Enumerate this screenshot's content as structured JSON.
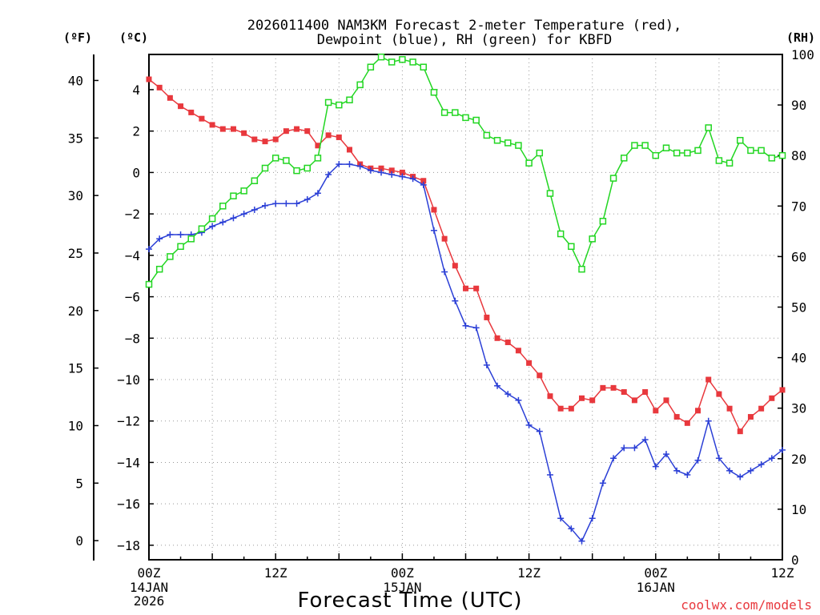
{
  "chart_data": {
    "type": "line",
    "title_line1": "2026011400 NAM3KM Forecast 2-meter Temperature (red),",
    "title_line2": "Dewpoint (blue), RH (green) for KBFD",
    "xlabel": "Forecast Time (UTC)",
    "credit": "coolwx.com/models",
    "unit_f": "(ºF)",
    "unit_c": "(ºC)",
    "unit_rh": "(RH)",
    "x_hours_range": [
      0,
      60
    ],
    "x_ticks": [
      {
        "h": 0,
        "label": "00Z",
        "sub1": "14JAN",
        "sub2": "2026"
      },
      {
        "h": 12,
        "label": "12Z",
        "sub1": "",
        "sub2": ""
      },
      {
        "h": 24,
        "label": "00Z",
        "sub1": "15JAN",
        "sub2": ""
      },
      {
        "h": 36,
        "label": "12Z",
        "sub1": "",
        "sub2": ""
      },
      {
        "h": 48,
        "label": "00Z",
        "sub1": "16JAN",
        "sub2": ""
      },
      {
        "h": 60,
        "label": "12Z",
        "sub1": "",
        "sub2": ""
      }
    ],
    "c_range": [
      -18.7,
      5.7
    ],
    "c_ticks": [
      "4",
      "2",
      "0",
      "−2",
      "−4",
      "−6",
      "−8",
      "−10",
      "−12",
      "−14",
      "−16",
      "−18"
    ],
    "c_tick_values": [
      4,
      2,
      0,
      -2,
      -4,
      -6,
      -8,
      -10,
      -12,
      -14,
      -16,
      -18
    ],
    "f_ticks": [
      "40",
      "35",
      "30",
      "25",
      "20",
      "15",
      "10",
      "5",
      "0"
    ],
    "f_tick_values": [
      40,
      35,
      30,
      25,
      20,
      15,
      10,
      5,
      0
    ],
    "rh_range": [
      0,
      100
    ],
    "rh_ticks": [
      "100",
      "90",
      "80",
      "70",
      "60",
      "50",
      "40",
      "30",
      "20",
      "10",
      "0"
    ],
    "rh_tick_values": [
      100,
      90,
      80,
      70,
      60,
      50,
      40,
      30,
      20,
      10,
      0
    ],
    "series": [
      {
        "name": "2-meter Temperature",
        "color": "#e8383d",
        "marker": "filled-square",
        "axis": "C",
        "hours": [
          0,
          1,
          2,
          3,
          4,
          5,
          6,
          7,
          8,
          9,
          10,
          11,
          12,
          13,
          14,
          15,
          16,
          17,
          18,
          19,
          20,
          21,
          22,
          23,
          24,
          25,
          26,
          27,
          28,
          29,
          30,
          31,
          32,
          33,
          34,
          35,
          36,
          37,
          38,
          39,
          40,
          41,
          42,
          43,
          44,
          45,
          46,
          47,
          48,
          49,
          50,
          51,
          52,
          53,
          54,
          55,
          56,
          57,
          58,
          59,
          60
        ],
        "values": [
          4.5,
          4.1,
          3.6,
          3.2,
          2.9,
          2.6,
          2.3,
          2.1,
          2.1,
          1.9,
          1.6,
          1.5,
          1.6,
          2.0,
          2.1,
          2.0,
          1.3,
          1.8,
          1.7,
          1.1,
          0.4,
          0.2,
          0.2,
          0.1,
          0.0,
          -0.2,
          -0.4,
          -1.8,
          -3.2,
          -4.5,
          -5.6,
          -5.6,
          -7.0,
          -8.0,
          -8.2,
          -8.6,
          -9.2,
          -9.8,
          -10.8,
          -11.4,
          -11.4,
          -10.9,
          -11.0,
          -10.4,
          -10.4,
          -10.6,
          -11.0,
          -10.6,
          -11.5,
          -11.0,
          -11.8,
          -12.1,
          -11.5,
          -10.0,
          -10.7,
          -11.4,
          -12.5,
          -11.8,
          -11.4,
          -10.9,
          -10.5
        ]
      },
      {
        "name": "Dewpoint",
        "color": "#2b3fd6",
        "marker": "plus",
        "axis": "C",
        "hours": [
          0,
          1,
          2,
          3,
          4,
          5,
          6,
          7,
          8,
          9,
          10,
          11,
          12,
          13,
          14,
          15,
          16,
          17,
          18,
          19,
          20,
          21,
          22,
          23,
          24,
          25,
          26,
          27,
          28,
          29,
          30,
          31,
          32,
          33,
          34,
          35,
          36,
          37,
          38,
          39,
          40,
          41,
          42,
          43,
          44,
          45,
          46,
          47,
          48,
          49,
          50,
          51,
          52,
          53,
          54,
          55,
          56,
          57,
          58,
          59,
          60
        ],
        "values": [
          -3.7,
          -3.2,
          -3.0,
          -3.0,
          -3.0,
          -2.9,
          -2.6,
          -2.4,
          -2.2,
          -2.0,
          -1.8,
          -1.6,
          -1.5,
          -1.5,
          -1.5,
          -1.3,
          -1.0,
          -0.1,
          0.4,
          0.4,
          0.3,
          0.1,
          0.0,
          -0.1,
          -0.2,
          -0.3,
          -0.6,
          -2.8,
          -4.8,
          -6.2,
          -7.4,
          -7.5,
          -9.3,
          -10.3,
          -10.7,
          -11.0,
          -12.2,
          -12.5,
          -14.6,
          -16.7,
          -17.2,
          -17.8,
          -16.7,
          -15.0,
          -13.8,
          -13.3,
          -13.3,
          -12.9,
          -14.2,
          -13.6,
          -14.4,
          -14.6,
          -13.9,
          -12.0,
          -13.8,
          -14.4,
          -14.7,
          -14.4,
          -14.1,
          -13.8,
          -13.4
        ]
      },
      {
        "name": "RH",
        "color": "#22d622",
        "marker": "open-square",
        "axis": "RH",
        "hours": [
          0,
          1,
          2,
          3,
          4,
          5,
          6,
          7,
          8,
          9,
          10,
          11,
          12,
          13,
          14,
          15,
          16,
          17,
          18,
          19,
          20,
          21,
          22,
          23,
          24,
          25,
          26,
          27,
          28,
          29,
          30,
          31,
          32,
          33,
          34,
          35,
          36,
          37,
          38,
          39,
          40,
          41,
          42,
          43,
          44,
          45,
          46,
          47,
          48,
          49,
          50,
          51,
          52,
          53,
          54,
          55,
          56,
          57,
          58,
          59,
          60
        ],
        "values": [
          54.5,
          57.5,
          60,
          62,
          63.5,
          65.5,
          67.5,
          70,
          72,
          73,
          75,
          77.5,
          79.5,
          79,
          77,
          77.5,
          79.5,
          90.5,
          90,
          91,
          94,
          97.5,
          99.5,
          98.5,
          99,
          98.5,
          97.5,
          92.5,
          88.5,
          88.5,
          87.5,
          87,
          84,
          83,
          82.5,
          82,
          78.5,
          80.5,
          72.5,
          64.5,
          62,
          57.5,
          63.5,
          67,
          75.5,
          79.5,
          82,
          82,
          80,
          81.5,
          80.5,
          80.5,
          81,
          85.5,
          79,
          78.5,
          83,
          81,
          81,
          79.5,
          80
        ]
      }
    ]
  }
}
